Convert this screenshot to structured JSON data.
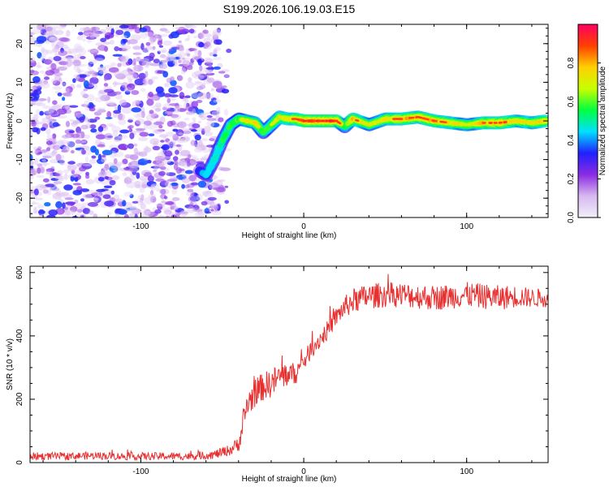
{
  "title": "S199.2026.106.19.03.E15",
  "chart_data": [
    {
      "type": "heatmap",
      "name": "spectrogram",
      "xlabel": "Height of straight line (km)",
      "ylabel": "Frequency (Hz)",
      "xlim": [
        -168,
        150
      ],
      "ylim": [
        -25,
        25
      ],
      "xticks": [
        -100,
        0,
        100
      ],
      "yticks": [
        -20,
        -10,
        0,
        10,
        20
      ],
      "colorbar": {
        "label": "Normalized spectral amplitude",
        "range": [
          0,
          1
        ],
        "ticks": [
          "0.0",
          "0.2",
          "0.4",
          "0.6",
          "0.8"
        ],
        "colors": [
          "#f0f0f8",
          "#d8b8f0",
          "#8a2be2",
          "#2020ff",
          "#00e0ff",
          "#00ff40",
          "#c8ff00",
          "#ffd000",
          "#ff4000",
          "#ff0060"
        ]
      },
      "noise_region_x": [
        -168,
        -52
      ],
      "ridge": {
        "x": [
          -64,
          -60,
          -55,
          -50,
          -45,
          -40,
          -35,
          -30,
          -25,
          -20,
          -15,
          -10,
          -5,
          0,
          10,
          20,
          25,
          30,
          40,
          50,
          60,
          70,
          80,
          90,
          100,
          110,
          120,
          130,
          140,
          148
        ],
        "freq": [
          -13,
          -14,
          -10,
          -5,
          -1,
          0.5,
          0,
          -0.5,
          -3,
          -1,
          1,
          0.5,
          0.5,
          0,
          0,
          0,
          -1.5,
          0.5,
          -1,
          0.5,
          0.5,
          1,
          0,
          -0.5,
          -1,
          -0.5,
          -0.5,
          0,
          -0.5,
          0
        ],
        "amplitude": [
          0.35,
          0.45,
          0.5,
          0.55,
          0.6,
          0.65,
          0.75,
          0.8,
          0.55,
          0.65,
          0.75,
          0.8,
          0.85,
          0.95,
          0.98,
          0.95,
          0.6,
          0.85,
          0.7,
          0.8,
          0.9,
          0.85,
          0.9,
          0.8,
          0.7,
          0.85,
          0.9,
          0.8,
          0.75,
          0.85
        ]
      }
    },
    {
      "type": "line",
      "name": "snr",
      "xlabel": "Height of straight line (km)",
      "ylabel": "SNR (10 * v/v)",
      "xlim": [
        -168,
        150
      ],
      "ylim": [
        0,
        620
      ],
      "xticks": [
        -100,
        0,
        100
      ],
      "yticks": [
        0,
        200,
        400,
        600
      ],
      "color": "#e83030",
      "x": [
        -168,
        -150,
        -130,
        -110,
        -90,
        -70,
        -55,
        -45,
        -40,
        -37,
        -35,
        -30,
        -25,
        -20,
        -15,
        -10,
        -5,
        0,
        5,
        10,
        15,
        20,
        25,
        30,
        40,
        50,
        60,
        70,
        80,
        90,
        100,
        110,
        120,
        130,
        140,
        150
      ],
      "values": [
        20,
        20,
        22,
        20,
        20,
        20,
        25,
        40,
        60,
        120,
        180,
        220,
        240,
        250,
        270,
        280,
        280,
        320,
        360,
        390,
        420,
        460,
        490,
        510,
        525,
        530,
        530,
        525,
        520,
        525,
        530,
        525,
        520,
        525,
        520,
        520
      ],
      "noise_amplitude": [
        12,
        12,
        12,
        12,
        12,
        12,
        14,
        18,
        25,
        40,
        45,
        45,
        45,
        45,
        45,
        40,
        35,
        30,
        30,
        30,
        30,
        30,
        35,
        40,
        40,
        40,
        40,
        40,
        40,
        40,
        40,
        40,
        40,
        35,
        30,
        30
      ]
    }
  ]
}
